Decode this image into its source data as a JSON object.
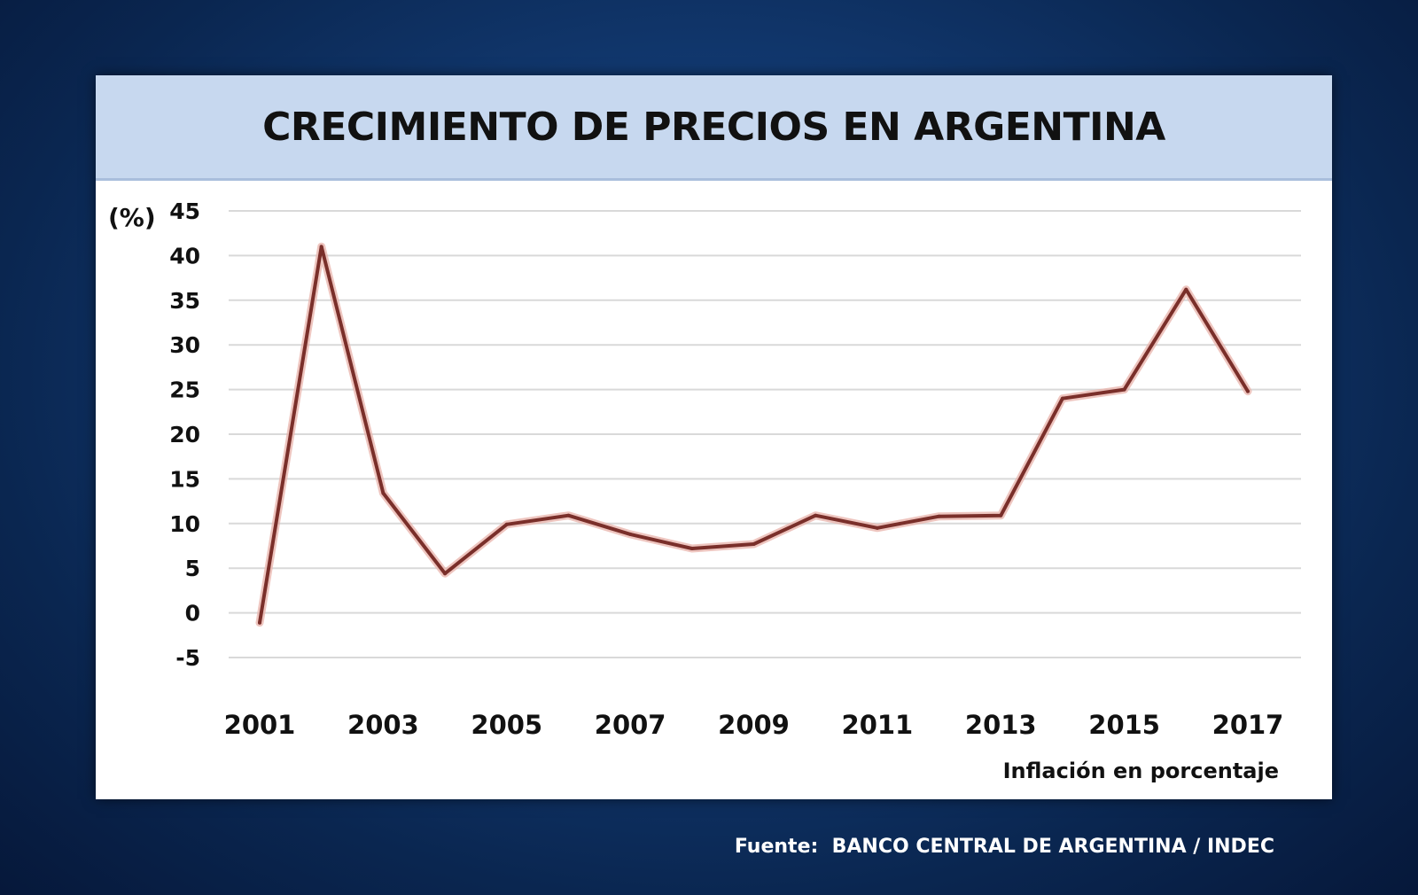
{
  "chart_data": {
    "type": "line",
    "title": "CRECIMIENTO DE PRECIOS EN ARGENTINA",
    "ylabel": "(%)",
    "note": "Inflación en porcentaje",
    "source": "Fuente:  BANCO CENTRAL DE ARGENTINA / INDEC",
    "ylim": [
      -5,
      45
    ],
    "yticks": [
      -5,
      0,
      5,
      10,
      15,
      20,
      25,
      30,
      35,
      40,
      45
    ],
    "xticks": [
      2001,
      2003,
      2005,
      2007,
      2009,
      2011,
      2013,
      2015,
      2017
    ],
    "grid": true,
    "x": [
      2001,
      2002,
      2003,
      2004,
      2005,
      2006,
      2007,
      2008,
      2009,
      2010,
      2011,
      2012,
      2013,
      2014,
      2015,
      2016,
      2017
    ],
    "series": [
      {
        "values": [
          -1.1,
          41.0,
          13.4,
          4.4,
          9.9,
          10.9,
          8.8,
          7.2,
          7.7,
          10.9,
          9.5,
          10.8,
          10.9,
          24.0,
          25.0,
          36.2,
          24.8
        ],
        "color": "#7a2f2a"
      }
    ],
    "colors": {
      "background": "#0e2f62",
      "header": "#c7d8ef",
      "line": "#7a2f2a",
      "line_glow": "#e8b2aa",
      "grid": "#d9d9d9"
    }
  }
}
